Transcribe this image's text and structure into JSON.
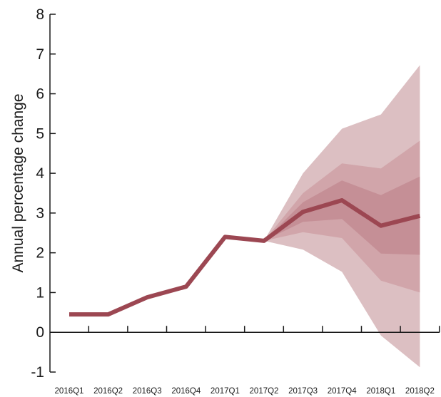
{
  "chart_data": {
    "type": "line",
    "ylabel": "Annual percentage change",
    "ylim": [
      -1,
      8
    ],
    "yticks": [
      -1,
      0,
      1,
      2,
      3,
      4,
      5,
      6,
      7,
      8
    ],
    "categories": [
      "2016Q1",
      "2016Q2",
      "2016Q3",
      "2016Q4",
      "2017Q1",
      "2017Q2",
      "2017Q3",
      "2017Q4",
      "2018Q1",
      "2018Q2"
    ],
    "series": [
      {
        "values": [
          0.45,
          0.45,
          0.88,
          1.15,
          2.4,
          2.3,
          3.03,
          3.32,
          2.68,
          2.93
        ]
      }
    ],
    "fan_bands": [
      {
        "lower": [
          null,
          null,
          null,
          null,
          null,
          2.3,
          2.08,
          1.52,
          -0.08,
          -0.88
        ],
        "upper": [
          null,
          null,
          null,
          null,
          null,
          2.3,
          4.0,
          5.12,
          5.48,
          6.72
        ]
      },
      {
        "lower": [
          null,
          null,
          null,
          null,
          null,
          2.3,
          2.52,
          2.37,
          1.3,
          1.0
        ],
        "upper": [
          null,
          null,
          null,
          null,
          null,
          2.3,
          3.5,
          4.25,
          4.12,
          4.82
        ]
      },
      {
        "lower": [
          null,
          null,
          null,
          null,
          null,
          2.3,
          2.78,
          2.85,
          1.98,
          1.95
        ],
        "upper": [
          null,
          null,
          null,
          null,
          null,
          2.3,
          3.27,
          3.82,
          3.45,
          3.92
        ]
      }
    ],
    "colors": {
      "line": "#9c4752",
      "outer_band": "#dcbfc2",
      "middle_band": "#d1a5aa",
      "inner_band": "#c58f96",
      "axis": "#1a1a1a"
    },
    "grid": false,
    "legend": "none"
  }
}
